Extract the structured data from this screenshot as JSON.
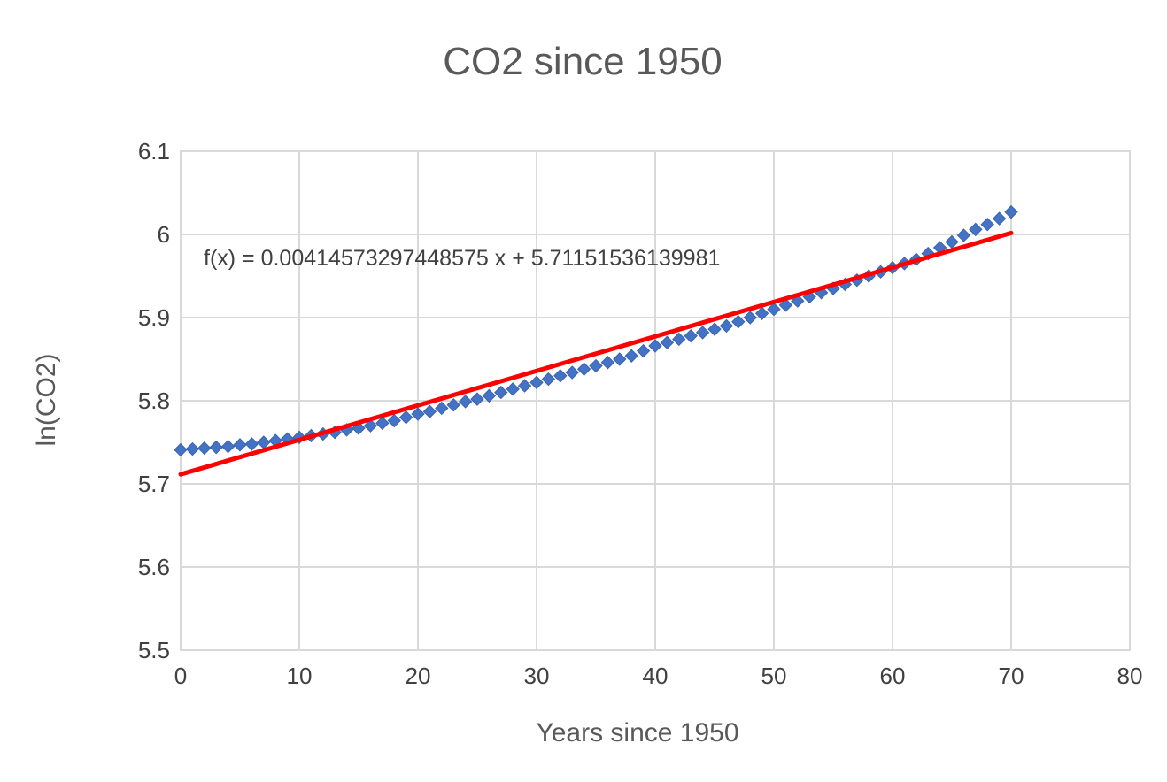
{
  "chart_data": {
    "type": "scatter",
    "title": "CO2 since 1950",
    "xlabel": "Years since 1950",
    "ylabel": "ln(CO2)",
    "xlim": [
      0,
      80
    ],
    "ylim": [
      5.5,
      6.1
    ],
    "xticks": [
      0,
      10,
      20,
      30,
      40,
      50,
      60,
      70,
      80
    ],
    "yticks": [
      5.5,
      5.6,
      5.7,
      5.8,
      5.9,
      6,
      6.1
    ],
    "xtick_labels": [
      "0",
      "10",
      "20",
      "30",
      "40",
      "50",
      "60",
      "70",
      "80"
    ],
    "ytick_labels": [
      "5.5",
      "5.6",
      "5.7",
      "5.8",
      "5.9",
      "6",
      "6.1"
    ],
    "grid": true,
    "legend": "none",
    "colors": {
      "points": "#4472C4",
      "trendline": "#FF0000",
      "grid": "#D9D9D9"
    },
    "series": [
      {
        "marker": "diamond",
        "x": [
          0,
          1,
          2,
          3,
          4,
          5,
          6,
          7,
          8,
          9,
          10,
          11,
          12,
          13,
          14,
          15,
          16,
          17,
          18,
          19,
          20,
          21,
          22,
          23,
          24,
          25,
          26,
          27,
          28,
          29,
          30,
          31,
          32,
          33,
          34,
          35,
          36,
          37,
          38,
          39,
          40,
          41,
          42,
          43,
          44,
          45,
          46,
          47,
          48,
          49,
          50,
          51,
          52,
          53,
          54,
          55,
          56,
          57,
          58,
          59,
          60,
          61,
          62,
          63,
          64,
          65,
          66,
          67,
          68,
          69,
          70
        ],
        "y": [
          5.741,
          5.742,
          5.743,
          5.744,
          5.745,
          5.747,
          5.748,
          5.75,
          5.752,
          5.754,
          5.756,
          5.758,
          5.76,
          5.762,
          5.765,
          5.767,
          5.77,
          5.773,
          5.776,
          5.78,
          5.784,
          5.787,
          5.791,
          5.795,
          5.799,
          5.802,
          5.806,
          5.81,
          5.814,
          5.818,
          5.822,
          5.826,
          5.83,
          5.834,
          5.838,
          5.842,
          5.846,
          5.85,
          5.854,
          5.86,
          5.866,
          5.87,
          5.874,
          5.878,
          5.882,
          5.886,
          5.89,
          5.895,
          5.9,
          5.905,
          5.91,
          5.915,
          5.92,
          5.925,
          5.93,
          5.935,
          5.94,
          5.945,
          5.95,
          5.955,
          5.96,
          5.965,
          5.97,
          5.977,
          5.984,
          5.991,
          5.999,
          6.006,
          6.012,
          6.019,
          6.027
        ]
      }
    ],
    "trendline": {
      "slope": 0.00414573297448575,
      "intercept": 5.71151536139981,
      "x_range": [
        0,
        70
      ],
      "equation_label": "f(x) = 0.00414573297448575 x + 5.71151536139981"
    }
  }
}
